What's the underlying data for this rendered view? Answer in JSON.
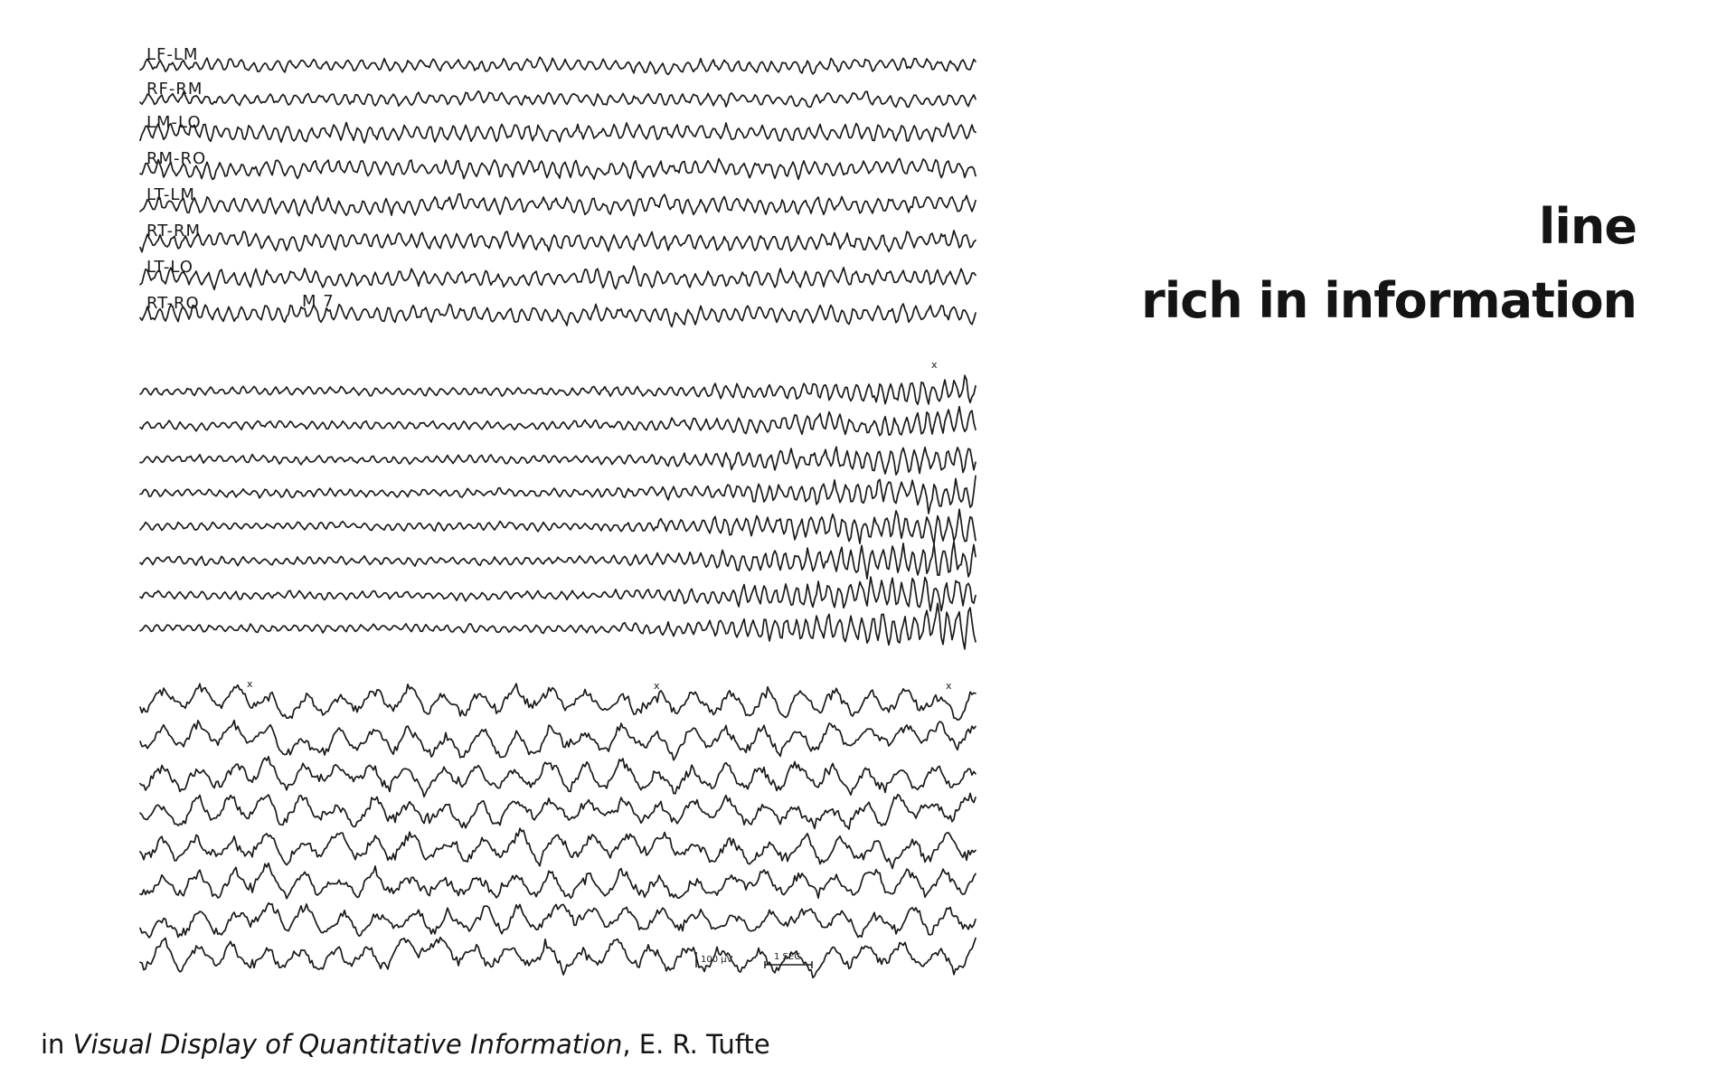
{
  "title": {
    "line1": "line",
    "line2": "rich in information"
  },
  "caption": {
    "prefix": "in ",
    "book_title": "Visual Display of Quantitative Information",
    "suffix": ", E. R. Tufte"
  },
  "figure": {
    "channel_labels": [
      "LF-LM",
      "RF-RM",
      "LM-LO",
      "RM-RO",
      "LT-LM",
      "RT-RM",
      "LT-LO",
      "RT-RO"
    ],
    "record_label": "M 7",
    "scale_amplitude": "100 µV",
    "scale_time": "1 SEC.",
    "event_marker": "x"
  }
}
